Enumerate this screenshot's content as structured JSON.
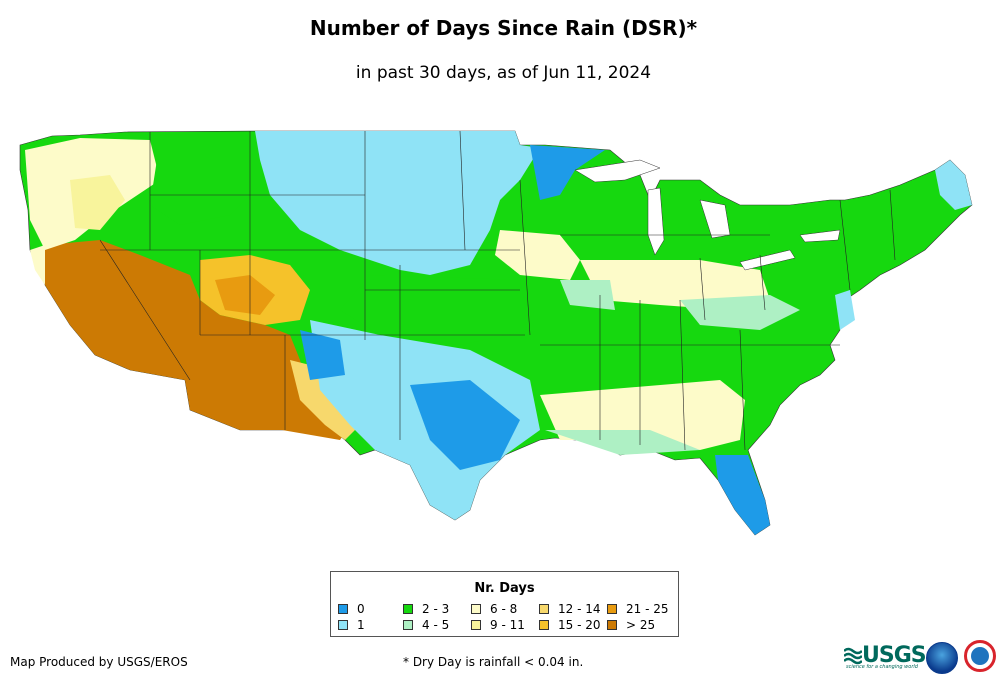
{
  "title": "Number of Days Since Rain (DSR)*",
  "subtitle": "in past 30 days, as of Jun 11, 2024",
  "legend": {
    "title": "Nr. Days",
    "items": [
      {
        "label": "0",
        "color": "#1e9be8"
      },
      {
        "label": "1",
        "color": "#8fe3f6"
      },
      {
        "label": "2 - 3",
        "color": "#16d80f"
      },
      {
        "label": "4 - 5",
        "color": "#aef0c4"
      },
      {
        "label": "6 - 8",
        "color": "#fdfbc9"
      },
      {
        "label": "9 - 11",
        "color": "#f8f49c"
      },
      {
        "label": "12 - 14",
        "color": "#f7d86c"
      },
      {
        "label": "15 - 20",
        "color": "#f5c22a"
      },
      {
        "label": "21 - 25",
        "color": "#e89b10"
      },
      {
        "label": "> 25",
        "color": "#cc7a04"
      }
    ]
  },
  "footer": {
    "producer": "Map Produced by USGS/EROS",
    "note": "* Dry Day is rainfall < 0.04 in."
  },
  "logos": {
    "usgs": "USGS",
    "usgs_tagline": "science for a changing world"
  }
}
